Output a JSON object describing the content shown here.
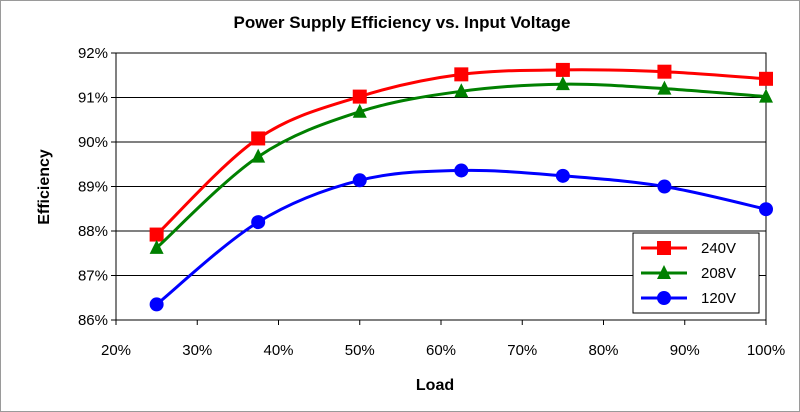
{
  "chart_data": {
    "type": "line",
    "title": "Power Supply Efficiency vs. Input Voltage",
    "xlabel": "Load",
    "ylabel": "Efficiency",
    "xlim": [
      20,
      100
    ],
    "ylim": [
      86,
      92
    ],
    "x_ticks": [
      "20%",
      "30%",
      "40%",
      "50%",
      "60%",
      "70%",
      "80%",
      "90%",
      "100%"
    ],
    "y_ticks": [
      "86%",
      "87%",
      "88%",
      "89%",
      "90%",
      "91%",
      "92%"
    ],
    "grid": true,
    "legend_position": "bottom-right",
    "series": [
      {
        "name": "240V",
        "color": "#ff0000",
        "marker": "square",
        "x": [
          25,
          37.5,
          50,
          62.5,
          75,
          87.5,
          100
        ],
        "y": [
          87.92,
          90.08,
          91.02,
          91.52,
          91.62,
          91.58,
          91.42
        ]
      },
      {
        "name": "208V",
        "color": "#008000",
        "marker": "triangle",
        "x": [
          25,
          37.5,
          50,
          62.5,
          75,
          87.5,
          100
        ],
        "y": [
          87.62,
          89.67,
          90.68,
          91.14,
          91.3,
          91.2,
          91.02
        ]
      },
      {
        "name": "120V",
        "color": "#0000ff",
        "marker": "circle",
        "x": [
          25,
          37.5,
          50,
          62.5,
          75,
          87.5,
          100
        ],
        "y": [
          86.35,
          88.2,
          89.14,
          89.36,
          89.24,
          89.0,
          88.49
        ]
      }
    ]
  }
}
